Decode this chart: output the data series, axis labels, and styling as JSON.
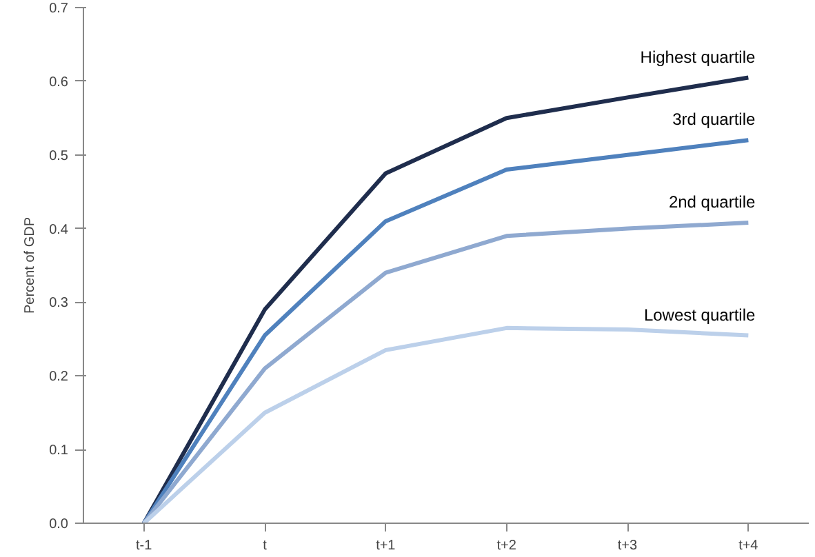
{
  "chart_data": {
    "type": "line",
    "ylabel": "Percent of GDP",
    "categories": [
      "t-1",
      "t",
      "t+1",
      "t+2",
      "t+3",
      "t+4"
    ],
    "series": [
      {
        "name": "Highest quartile",
        "color": "#1f2d4d",
        "values": [
          0,
          0.29,
          0.475,
          0.55,
          0.578,
          0.605
        ]
      },
      {
        "name": "3rd quartile",
        "color": "#4f81bd",
        "values": [
          0,
          0.255,
          0.41,
          0.48,
          0.5,
          0.52
        ]
      },
      {
        "name": "2nd quartile",
        "color": "#8fa9d0",
        "values": [
          0,
          0.21,
          0.34,
          0.39,
          0.4,
          0.408
        ]
      },
      {
        "name": "Lowest quartile",
        "color": "#bcd0ea",
        "values": [
          0,
          0.15,
          0.235,
          0.265,
          0.263,
          0.255
        ]
      }
    ],
    "ylim": [
      0,
      0.7
    ],
    "yticks": [
      {
        "value": 0,
        "label": "0.0"
      },
      0.1,
      0.2,
      0.3,
      0.4,
      0.5,
      0.6,
      0.7
    ],
    "grid": false,
    "marker": "none",
    "line_style": "solid"
  }
}
